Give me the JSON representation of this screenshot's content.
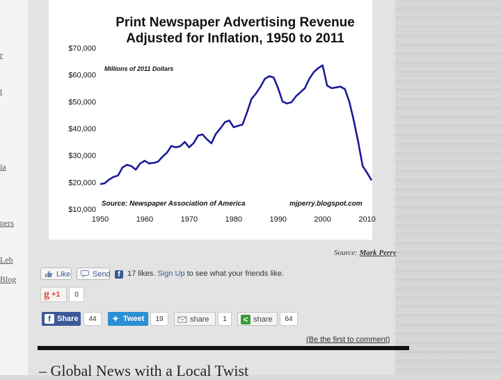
{
  "sidebar_fragments": [
    "r",
    "t",
    "ia",
    "pers",
    "Leb",
    "Blog"
  ],
  "chart_data": {
    "type": "line",
    "title_line1": "Print Newspaper Advertising Revenue",
    "title_line2": "Adjusted for Inflation, 1950 to 2011",
    "units_label": "Millions of 2011 Dollars",
    "source_inner": "Source: Newspaper Association of America",
    "watermark": "mjperry.blogspot.com",
    "xlim": [
      1950,
      2011
    ],
    "ylim": [
      10000,
      70000
    ],
    "x_ticks": [
      1950,
      1960,
      1970,
      1980,
      1990,
      2000,
      2010
    ],
    "y_ticks": [
      {
        "v": 10000,
        "label": "$10,000"
      },
      {
        "v": 20000,
        "label": "$20,000"
      },
      {
        "v": 30000,
        "label": "$30,000"
      },
      {
        "v": 40000,
        "label": "$40,000"
      },
      {
        "v": 50000,
        "label": "$50,000"
      },
      {
        "v": 60000,
        "label": "$60,000"
      },
      {
        "v": 70000,
        "label": "$70,000"
      }
    ],
    "x": [
      1950,
      1951,
      1952,
      1953,
      1954,
      1955,
      1956,
      1957,
      1958,
      1959,
      1960,
      1961,
      1962,
      1963,
      1964,
      1965,
      1966,
      1967,
      1968,
      1969,
      1970,
      1971,
      1972,
      1973,
      1974,
      1975,
      1976,
      1977,
      1978,
      1979,
      1980,
      1981,
      1982,
      1983,
      1984,
      1985,
      1986,
      1987,
      1988,
      1989,
      1990,
      1991,
      1992,
      1993,
      1994,
      1995,
      1996,
      1997,
      1998,
      1999,
      2000,
      2001,
      2002,
      2003,
      2004,
      2005,
      2006,
      2007,
      2008,
      2009,
      2010,
      2011
    ],
    "values": [
      19300,
      19600,
      21000,
      22000,
      22500,
      25500,
      26500,
      26000,
      24700,
      27000,
      28000,
      27000,
      27200,
      27700,
      29500,
      31000,
      33500,
      33000,
      33400,
      35000,
      33000,
      34600,
      37400,
      37800,
      36000,
      34500,
      38000,
      40000,
      42300,
      43000,
      40500,
      41000,
      41500,
      46000,
      51000,
      53000,
      55500,
      58500,
      59500,
      59000,
      55000,
      50000,
      49300,
      49800,
      52000,
      53500,
      55000,
      58500,
      61000,
      62500,
      63500,
      56000,
      55000,
      55300,
      55600,
      54700,
      50000,
      43000,
      35000,
      26000,
      23500,
      20700
    ]
  },
  "source_caption": {
    "prefix": "Source: ",
    "link": "Mark Perry"
  },
  "social": {
    "like_label": "Like",
    "send_label": "Send",
    "likes_count": "17 likes.",
    "signup_link": "Sign Up",
    "signup_suffix": "to see what your friends like.",
    "gplus_label": "+1",
    "gplus_count": "0",
    "fb_share_label": "Share",
    "fb_share_count": "44",
    "tweet_label": "Tweet",
    "tweet_count": "19",
    "email_share_label": "share",
    "email_share_count": "1",
    "sharethis_label": "share",
    "sharethis_count": "64"
  },
  "comments": {
    "first_comment_link": "(Be the first to comment)"
  },
  "next_section_title": "– Global News with a Local Twist"
}
